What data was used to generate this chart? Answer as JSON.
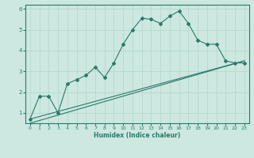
{
  "xlabel": "Humidex (Indice chaleur)",
  "bg_color": "#cce8e0",
  "grid_color": "#b8d8d0",
  "line_color": "#2a7a6a",
  "xlim": [
    -0.5,
    23.5
  ],
  "ylim": [
    0.5,
    6.2
  ],
  "xticks": [
    0,
    1,
    2,
    3,
    4,
    5,
    6,
    7,
    8,
    9,
    10,
    11,
    12,
    13,
    14,
    15,
    16,
    17,
    18,
    19,
    20,
    21,
    22,
    23
  ],
  "yticks": [
    1,
    2,
    3,
    4,
    5,
    6
  ],
  "series1_x": [
    0,
    1,
    2,
    3,
    4,
    5,
    6,
    7,
    8,
    9,
    10,
    11,
    12,
    13,
    14,
    15,
    16,
    17,
    18,
    19,
    20,
    21,
    22,
    23
  ],
  "series1_y": [
    0.7,
    1.8,
    1.8,
    1.0,
    2.4,
    2.6,
    2.8,
    3.2,
    2.7,
    3.4,
    4.3,
    5.0,
    5.55,
    5.5,
    5.3,
    5.65,
    5.9,
    5.3,
    4.5,
    4.3,
    4.3,
    3.5,
    3.4,
    3.4
  ],
  "series2_x": [
    0,
    23
  ],
  "series2_y": [
    0.7,
    3.5
  ],
  "series3_x": [
    0,
    23
  ],
  "series3_y": [
    0.5,
    3.5
  ]
}
